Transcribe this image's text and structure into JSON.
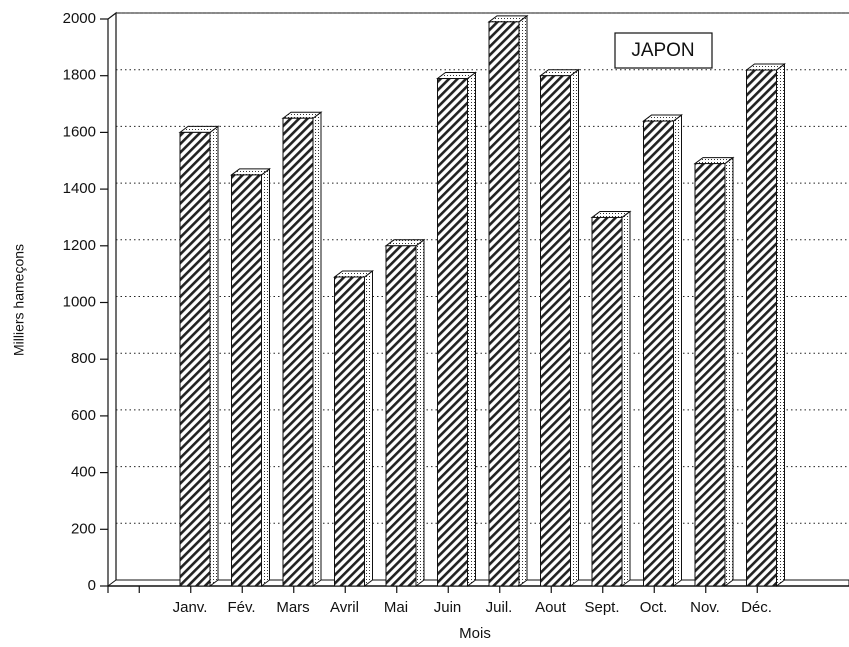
{
  "chart_data": {
    "type": "bar3d",
    "x_label": "Mois",
    "y_label": "Milliers hameçons",
    "categories": [
      "Janv.",
      "Fév.",
      "Mars",
      "Avril",
      "Mai",
      "Juin",
      "Juil.",
      "Aout",
      "Sept.",
      "Oct.",
      "Nov.",
      "Déc."
    ],
    "series": [
      {
        "name": "JAPON",
        "color": "#ffffff",
        "values": [
          1600,
          1450,
          1650,
          1090,
          1200,
          1790,
          1990,
          1800,
          1300,
          1640,
          1490,
          1820
        ]
      }
    ],
    "ylim": [
      0,
      2000
    ],
    "yticks": [
      0,
      200,
      400,
      600,
      800,
      1000,
      1200,
      1400,
      1600,
      1800,
      2000
    ],
    "grid": true
  }
}
